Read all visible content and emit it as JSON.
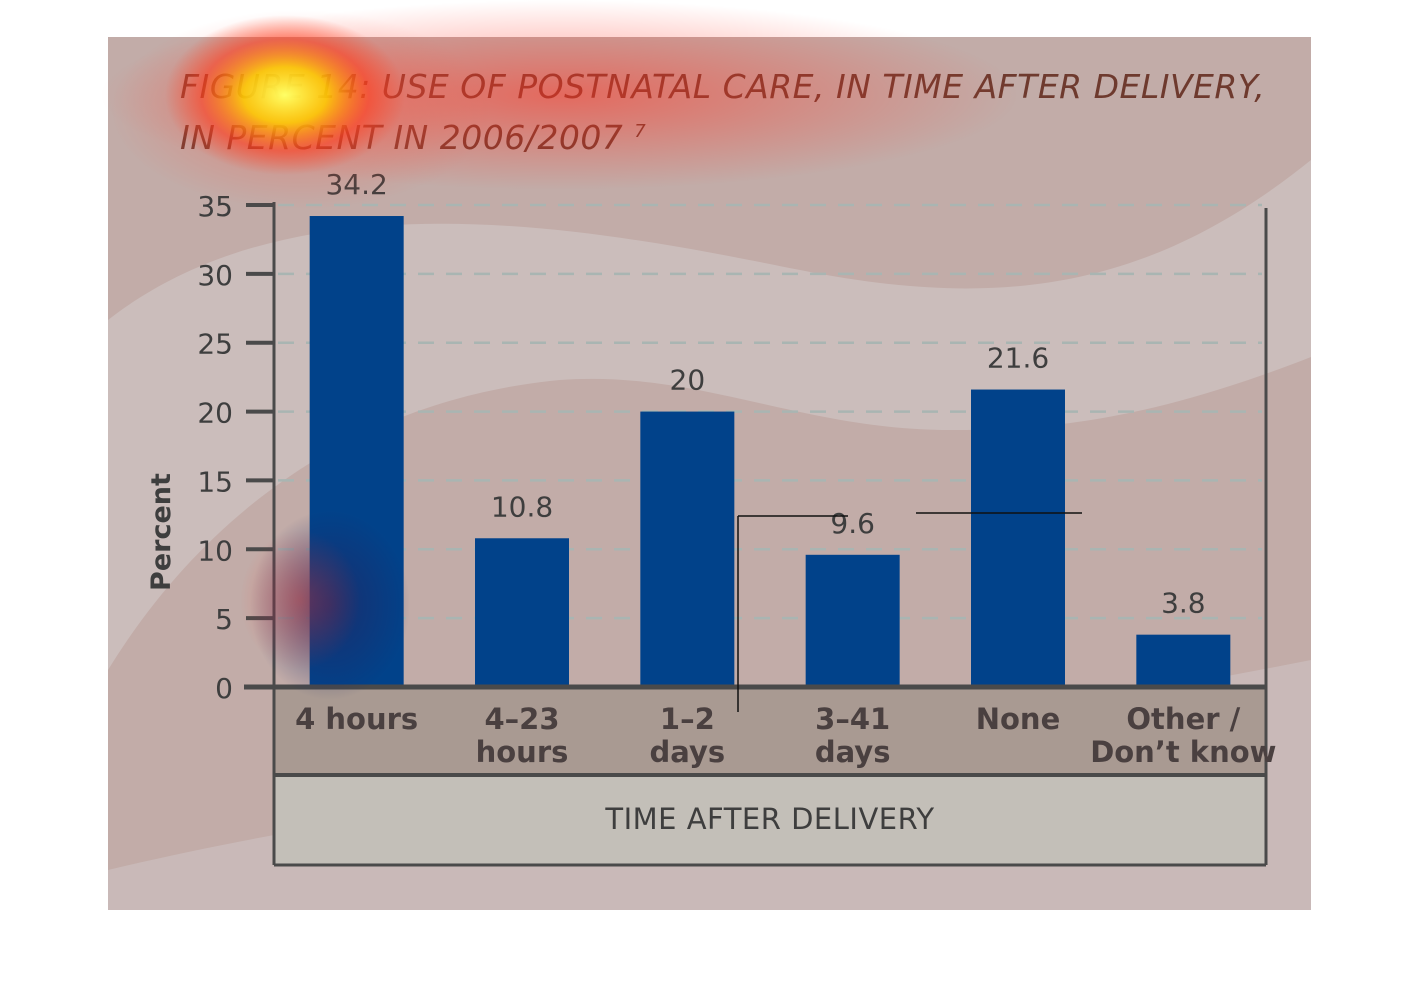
{
  "chart_data": {
    "type": "bar",
    "title_lines": [
      "FIGURE 14: USE OF POSTNATAL CARE, IN TIME AFTER DELIVERY,",
      "IN PERCENT IN 2006/2007"
    ],
    "title_footnote": "7",
    "categories": [
      [
        "4 hours"
      ],
      [
        "4–23",
        "hours"
      ],
      [
        "1–2",
        "days"
      ],
      [
        "3–41",
        "days"
      ],
      [
        "None"
      ],
      [
        "Other /",
        "Don’t know"
      ]
    ],
    "values": [
      34.2,
      10.8,
      20,
      9.6,
      21.6,
      3.8
    ],
    "value_labels": [
      "34.2",
      "10.8",
      "20",
      "9.6",
      "21.6",
      "3.8"
    ],
    "ylabel": "Percent",
    "xlabel": "TIME AFTER DELIVERY",
    "ylim": [
      0,
      35
    ],
    "yticks": [
      0,
      5,
      10,
      15,
      20,
      25,
      30,
      35
    ],
    "grid": true,
    "colors": {
      "bar": "#01428a",
      "background": "#c2aca8",
      "wave": "#cbbdbb",
      "category_band": "#a99a92",
      "axis_title_band": "#c3bfb8",
      "axis": "#4a4a4a",
      "grid": "#a9b5b2"
    }
  }
}
